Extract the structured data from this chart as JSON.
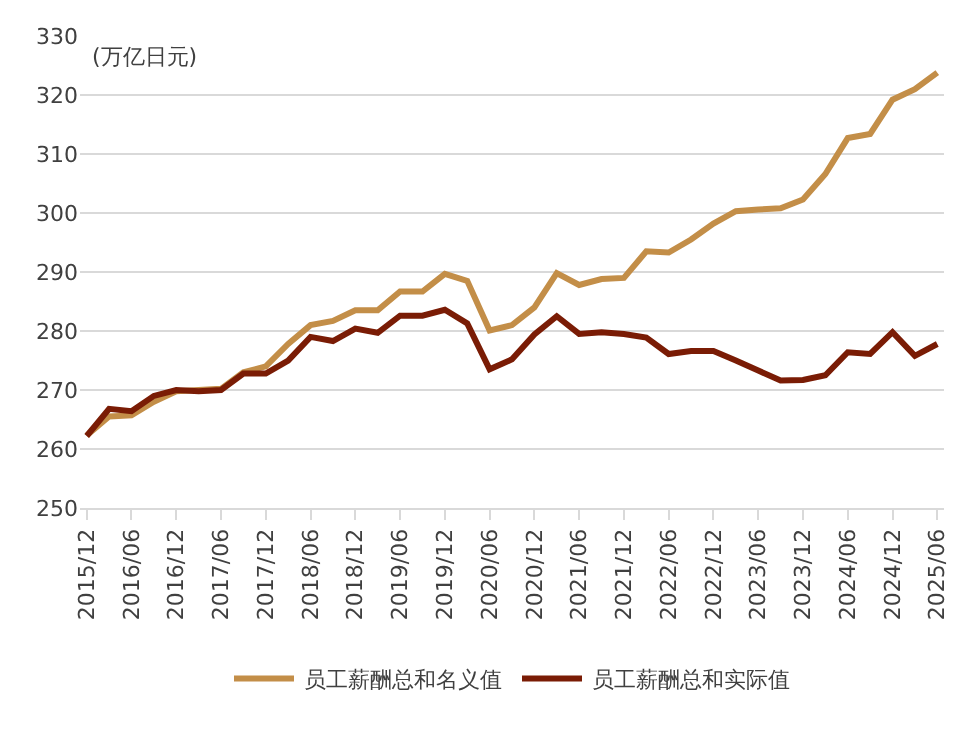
{
  "chart_data": {
    "type": "line",
    "ylabel": "(万亿日元)",
    "categories": [
      "2015/12",
      null,
      "2016/06",
      null,
      "2016/12",
      null,
      "2017/06",
      null,
      "2017/12",
      null,
      "2018/06",
      null,
      "2018/12",
      null,
      "2019/06",
      null,
      "2019/12",
      null,
      "2020/06",
      null,
      "2020/12",
      null,
      "2021/06",
      null,
      "2021/12",
      null,
      "2022/06",
      null,
      "2022/12",
      null,
      "2023/06",
      null,
      "2023/12",
      null,
      "2024/06",
      null,
      "2024/12",
      null,
      "2025/06"
    ],
    "series": [
      {
        "name": "员工薪酬总和名义值",
        "color": "#c38e48",
        "values": [
          262.3,
          265.5,
          265.7,
          268,
          269.8,
          270,
          270.2,
          273,
          274,
          277.8,
          281,
          281.7,
          283.5,
          283.5,
          286.7,
          286.7,
          289.7,
          288.5,
          280.1,
          281,
          284,
          289.8,
          287.8,
          288.8,
          289,
          293.5,
          293.3,
          295.5,
          298.2,
          300.3,
          300.6,
          300.8,
          302.3,
          306.6,
          312.7,
          313.4,
          319.2,
          321,
          323.8
        ]
      },
      {
        "name": "员工薪酬总和实际值",
        "color": "#7a1c05",
        "values": [
          262.2,
          266.8,
          266.4,
          269,
          270,
          269.8,
          270,
          272.8,
          272.8,
          275,
          279,
          278.3,
          280.4,
          279.7,
          282.6,
          282.6,
          283.6,
          281.3,
          273.5,
          275.2,
          279.4,
          282.5,
          279.5,
          279.8,
          279.5,
          278.9,
          276.1,
          276.6,
          276.6,
          275,
          273.3,
          271.6,
          271.7,
          272.5,
          276.4,
          276.1,
          279.8,
          275.8,
          277.8
        ]
      }
    ],
    "ylim": [
      250,
      330
    ],
    "yticks": [
      250,
      260,
      270,
      280,
      290,
      300,
      310,
      320,
      330
    ],
    "grid": "y",
    "legend": "bottom",
    "marker": "none",
    "line_style": "solid"
  }
}
